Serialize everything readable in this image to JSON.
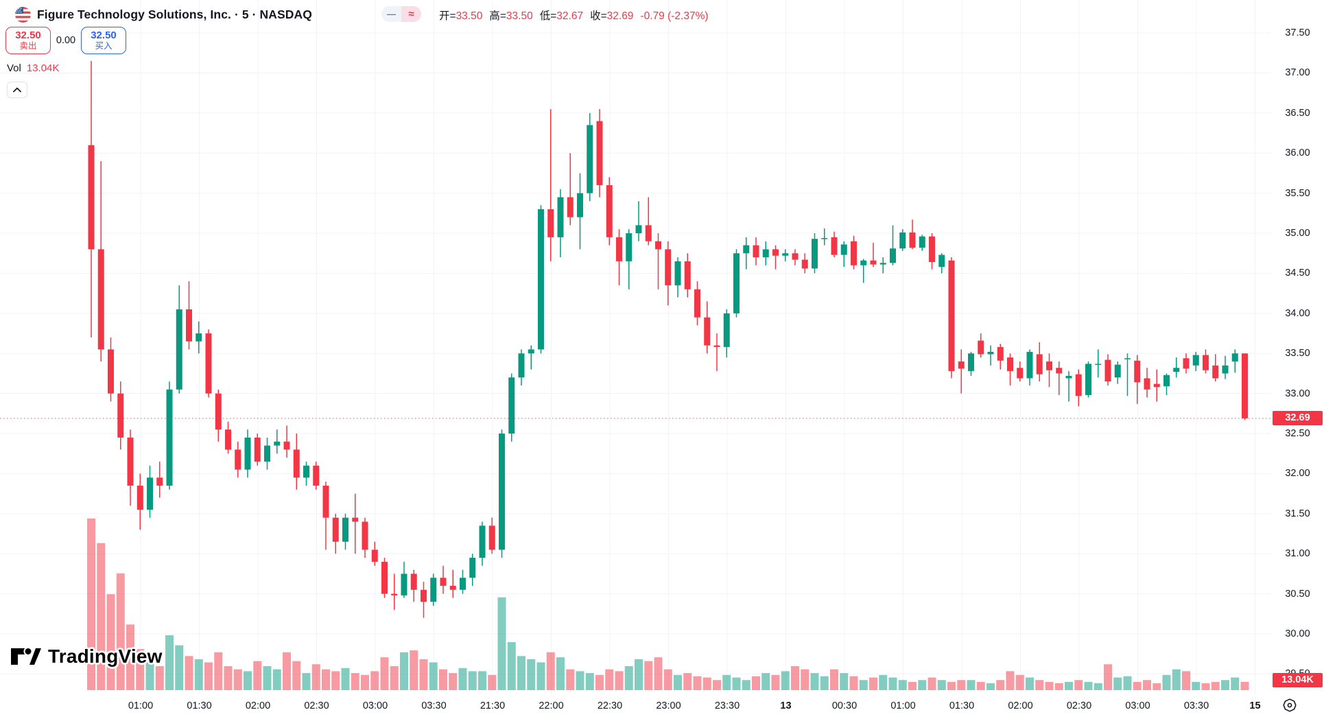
{
  "header": {
    "symbol_title": "Figure Technology Solutions, Inc. · 5 · NASDAQ",
    "flag_icon": "us-flag-icon",
    "toolbar": {
      "dash_button": "—",
      "wave_button": "≈"
    },
    "ohlc": {
      "open_label": "开=",
      "open": "33.50",
      "high_label": "高=",
      "high": "33.50",
      "low_label": "低=",
      "low": "32.67",
      "close_label": "收=",
      "close": "32.69",
      "change": "-0.79 (-2.37%)"
    }
  },
  "trade_panel": {
    "sell_price": "32.50",
    "sell_label": "卖出",
    "spread": "0.00",
    "buy_price": "32.50",
    "buy_label": "买入"
  },
  "volume_row": {
    "label": "Vol",
    "value": "13.04K"
  },
  "logo": {
    "text": "TradingView"
  },
  "price_scale": {
    "ticks": [
      "37.50",
      "37.00",
      "36.50",
      "36.00",
      "35.50",
      "35.00",
      "34.50",
      "34.00",
      "33.50",
      "33.00",
      "32.50",
      "32.00",
      "31.50",
      "31.00",
      "30.50",
      "30.00",
      "29.50"
    ],
    "last_price_badge": "32.69",
    "volume_badge": "13.04K"
  },
  "time_scale": {
    "labels": [
      {
        "text": "01:00",
        "bold": false
      },
      {
        "text": "01:30",
        "bold": false
      },
      {
        "text": "02:00",
        "bold": false
      },
      {
        "text": "02:30",
        "bold": false
      },
      {
        "text": "03:00",
        "bold": false
      },
      {
        "text": "03:30",
        "bold": false
      },
      {
        "text": "21:30",
        "bold": false
      },
      {
        "text": "22:00",
        "bold": false
      },
      {
        "text": "22:30",
        "bold": false
      },
      {
        "text": "23:00",
        "bold": false
      },
      {
        "text": "23:30",
        "bold": false
      },
      {
        "text": "13",
        "bold": true
      },
      {
        "text": "00:30",
        "bold": false
      },
      {
        "text": "01:00",
        "bold": false
      },
      {
        "text": "01:30",
        "bold": false
      },
      {
        "text": "02:00",
        "bold": false
      },
      {
        "text": "02:30",
        "bold": false
      },
      {
        "text": "03:00",
        "bold": false
      },
      {
        "text": "03:30",
        "bold": false
      },
      {
        "text": "15",
        "bold": true
      }
    ]
  },
  "colors": {
    "up": "#089981",
    "down": "#f23645",
    "volume_up": "rgba(8,153,129,0.5)",
    "volume_down": "rgba(242,54,69,0.5)",
    "buy_blue": "#2962ff",
    "sell_red": "#f23645",
    "grid": "#f0f3fa",
    "axis_border": "#e0e3eb",
    "axis_text": "#131722",
    "last_price_line": "#f23645"
  },
  "chart_data": {
    "type": "candlestick",
    "title": "Figure Technology Solutions, Inc.",
    "interval": "5",
    "exchange": "NASDAQ",
    "legend_volume": "Vol",
    "last_price": 32.69,
    "last_change": "-0.79 (-2.37%)",
    "last_bar_ohlc": {
      "open": 33.5,
      "high": 33.5,
      "low": 32.67,
      "close": 32.69
    },
    "last_volume_k": 13.04,
    "price_axis": {
      "min": 29.5,
      "max": 37.5,
      "step": 0.5,
      "grid": true
    },
    "time_ticks": [
      "01:00",
      "01:30",
      "02:00",
      "02:30",
      "03:00",
      "03:30",
      "21:30",
      "22:00",
      "22:30",
      "23:00",
      "23:30",
      "13",
      "00:30",
      "01:00",
      "01:30",
      "02:00",
      "02:30",
      "03:00",
      "03:30",
      "15"
    ],
    "candles": [
      [
        36.1,
        37.15,
        33.7,
        34.8
      ],
      [
        34.8,
        35.9,
        33.4,
        33.55
      ],
      [
        33.55,
        33.7,
        32.9,
        33.0
      ],
      [
        33.0,
        33.15,
        32.3,
        32.45
      ],
      [
        32.45,
        32.55,
        31.6,
        31.85
      ],
      [
        31.85,
        32.0,
        31.3,
        31.55
      ],
      [
        31.55,
        32.1,
        31.45,
        31.95
      ],
      [
        31.95,
        32.15,
        31.7,
        31.85
      ],
      [
        31.85,
        33.15,
        31.8,
        33.05
      ],
      [
        33.05,
        34.35,
        33.0,
        34.05
      ],
      [
        34.05,
        34.4,
        33.55,
        33.65
      ],
      [
        33.65,
        33.9,
        33.5,
        33.75
      ],
      [
        33.75,
        33.8,
        32.95,
        33.0
      ],
      [
        33.0,
        33.05,
        32.4,
        32.55
      ],
      [
        32.55,
        32.65,
        32.25,
        32.3
      ],
      [
        32.3,
        32.4,
        31.95,
        32.05
      ],
      [
        32.05,
        32.55,
        31.95,
        32.45
      ],
      [
        32.45,
        32.5,
        32.1,
        32.15
      ],
      [
        32.15,
        32.45,
        32.05,
        32.35
      ],
      [
        32.35,
        32.55,
        32.25,
        32.4
      ],
      [
        32.4,
        32.6,
        32.2,
        32.3
      ],
      [
        32.3,
        32.5,
        31.8,
        31.95
      ],
      [
        31.95,
        32.15,
        31.85,
        32.1
      ],
      [
        32.1,
        32.15,
        31.8,
        31.85
      ],
      [
        31.85,
        31.9,
        31.05,
        31.45
      ],
      [
        31.45,
        31.5,
        31.0,
        31.15
      ],
      [
        31.15,
        31.5,
        31.05,
        31.45
      ],
      [
        31.45,
        31.75,
        31.0,
        31.4
      ],
      [
        31.4,
        31.45,
        30.95,
        31.05
      ],
      [
        31.05,
        31.15,
        30.85,
        30.9
      ],
      [
        30.9,
        30.95,
        30.45,
        30.5
      ],
      [
        30.5,
        30.75,
        30.3,
        30.48
      ],
      [
        30.48,
        30.9,
        30.45,
        30.75
      ],
      [
        30.75,
        30.8,
        30.4,
        30.55
      ],
      [
        30.55,
        30.65,
        30.2,
        30.4
      ],
      [
        30.4,
        30.75,
        30.35,
        30.7
      ],
      [
        30.7,
        30.85,
        30.5,
        30.6
      ],
      [
        30.6,
        30.8,
        30.45,
        30.55
      ],
      [
        30.55,
        30.8,
        30.5,
        30.7
      ],
      [
        30.7,
        31.0,
        30.6,
        30.95
      ],
      [
        30.95,
        31.4,
        30.85,
        31.35
      ],
      [
        31.35,
        31.45,
        31.0,
        31.05
      ],
      [
        31.05,
        32.55,
        30.95,
        32.5
      ],
      [
        32.5,
        33.25,
        32.4,
        33.2
      ],
      [
        33.2,
        33.55,
        33.1,
        33.5
      ],
      [
        33.5,
        33.6,
        33.3,
        33.55
      ],
      [
        33.55,
        35.35,
        33.5,
        35.3
      ],
      [
        35.3,
        36.55,
        34.65,
        34.95
      ],
      [
        34.95,
        35.55,
        34.7,
        35.45
      ],
      [
        35.45,
        36.0,
        35.1,
        35.2
      ],
      [
        35.2,
        35.75,
        34.8,
        35.5
      ],
      [
        35.5,
        36.5,
        35.4,
        36.35
      ],
      [
        36.4,
        36.55,
        35.45,
        35.6
      ],
      [
        35.6,
        35.7,
        34.85,
        34.95
      ],
      [
        34.95,
        35.05,
        34.35,
        34.65
      ],
      [
        34.65,
        35.05,
        34.3,
        35.0
      ],
      [
        35.0,
        35.4,
        34.9,
        35.1
      ],
      [
        35.1,
        35.45,
        34.85,
        34.9
      ],
      [
        34.9,
        35.0,
        34.3,
        34.8
      ],
      [
        34.8,
        34.9,
        34.1,
        34.35
      ],
      [
        34.35,
        34.7,
        34.2,
        34.65
      ],
      [
        34.65,
        34.75,
        34.2,
        34.3
      ],
      [
        34.3,
        34.4,
        33.85,
        33.95
      ],
      [
        33.95,
        34.15,
        33.5,
        33.6
      ],
      [
        33.6,
        33.75,
        33.28,
        33.58
      ],
      [
        33.58,
        34.05,
        33.45,
        34.0
      ],
      [
        34.0,
        34.8,
        33.95,
        34.75
      ],
      [
        34.75,
        34.95,
        34.55,
        34.85
      ],
      [
        34.85,
        34.95,
        34.6,
        34.7
      ],
      [
        34.7,
        34.9,
        34.6,
        34.8
      ],
      [
        34.8,
        34.85,
        34.55,
        34.72
      ],
      [
        34.72,
        34.8,
        34.65,
        34.75
      ],
      [
        34.75,
        34.8,
        34.6,
        34.67
      ],
      [
        34.67,
        34.75,
        34.5,
        34.56
      ],
      [
        34.56,
        35.0,
        34.5,
        34.93
      ],
      [
        34.93,
        35.06,
        34.85,
        34.94
      ],
      [
        34.95,
        35.02,
        34.7,
        34.73
      ],
      [
        34.73,
        34.9,
        34.58,
        34.86
      ],
      [
        34.9,
        34.97,
        34.55,
        34.6
      ],
      [
        34.6,
        34.68,
        34.38,
        34.66
      ],
      [
        34.66,
        34.88,
        34.58,
        34.61
      ],
      [
        34.61,
        34.7,
        34.5,
        34.63
      ],
      [
        34.63,
        35.1,
        34.6,
        34.81
      ],
      [
        34.81,
        35.05,
        34.78,
        35.01
      ],
      [
        35.01,
        35.17,
        34.8,
        34.82
      ],
      [
        34.82,
        34.98,
        34.78,
        34.96
      ],
      [
        34.96,
        35.0,
        34.55,
        34.64
      ],
      [
        34.58,
        34.75,
        34.5,
        34.73
      ],
      [
        34.66,
        34.7,
        33.19,
        33.28
      ],
      [
        33.4,
        33.55,
        33.0,
        33.31
      ],
      [
        33.28,
        33.52,
        33.22,
        33.5
      ],
      [
        33.66,
        33.75,
        33.45,
        33.49
      ],
      [
        33.49,
        33.6,
        33.35,
        33.52
      ],
      [
        33.58,
        33.62,
        33.3,
        33.41
      ],
      [
        33.45,
        33.5,
        33.1,
        33.28
      ],
      [
        33.32,
        33.4,
        33.15,
        33.19
      ],
      [
        33.19,
        33.55,
        33.1,
        33.52
      ],
      [
        33.49,
        33.64,
        33.15,
        33.24
      ],
      [
        33.4,
        33.5,
        33.08,
        33.29
      ],
      [
        33.32,
        33.4,
        32.98,
        33.25
      ],
      [
        33.19,
        33.28,
        32.9,
        33.22
      ],
      [
        33.24,
        33.3,
        32.84,
        32.97
      ],
      [
        32.98,
        33.4,
        32.95,
        33.37
      ],
      [
        33.37,
        33.55,
        33.2,
        33.37
      ],
      [
        33.42,
        33.49,
        33.1,
        33.15
      ],
      [
        33.2,
        33.4,
        33.12,
        33.36
      ],
      [
        33.44,
        33.5,
        32.97,
        33.44
      ],
      [
        33.41,
        33.48,
        32.87,
        33.14
      ],
      [
        33.19,
        33.32,
        32.95,
        33.05
      ],
      [
        33.12,
        33.3,
        32.9,
        33.08
      ],
      [
        33.09,
        33.25,
        32.98,
        33.23
      ],
      [
        33.27,
        33.45,
        33.2,
        33.32
      ],
      [
        33.44,
        33.5,
        33.25,
        33.31
      ],
      [
        33.35,
        33.52,
        33.28,
        33.48
      ],
      [
        33.48,
        33.55,
        33.25,
        33.29
      ],
      [
        33.35,
        33.49,
        33.15,
        33.19
      ],
      [
        33.25,
        33.47,
        33.18,
        33.35
      ],
      [
        33.4,
        33.55,
        33.26,
        33.5
      ],
      [
        33.5,
        33.5,
        32.67,
        32.69
      ]
    ],
    "volumes_k": [
      272,
      233,
      152,
      185,
      104,
      65,
      49,
      38,
      87,
      71,
      54,
      49,
      44,
      60,
      38,
      33,
      30,
      46,
      38,
      33,
      60,
      46,
      27,
      41,
      33,
      30,
      35,
      27,
      24,
      30,
      52,
      38,
      60,
      63,
      49,
      44,
      33,
      27,
      35,
      30,
      30,
      24,
      147,
      76,
      54,
      49,
      44,
      60,
      52,
      33,
      30,
      27,
      24,
      33,
      30,
      38,
      49,
      46,
      52,
      33,
      24,
      27,
      22,
      20,
      16,
      24,
      20,
      16,
      22,
      27,
      24,
      30,
      38,
      33,
      27,
      22,
      33,
      27,
      22,
      16,
      20,
      24,
      20,
      16,
      13,
      16,
      20,
      16,
      13,
      16,
      16,
      13,
      11,
      16,
      30,
      24,
      20,
      16,
      13,
      11,
      13,
      16,
      13,
      11,
      41,
      20,
      22,
      13,
      16,
      11,
      24,
      33,
      30,
      13,
      11,
      13,
      16,
      20,
      13.04
    ]
  }
}
